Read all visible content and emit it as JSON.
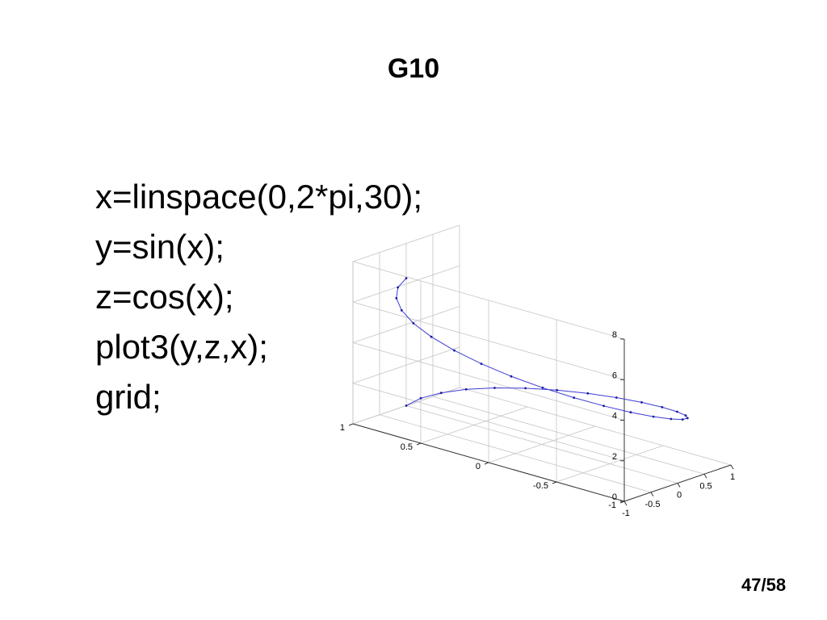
{
  "slide": {
    "title": "G10",
    "page_number": "47/58"
  },
  "code": {
    "lines": [
      "x=linspace(0,2*pi,30);",
      "y=sin(x);",
      "z=cos(x);",
      "plot3(y,z,x);",
      "grid;"
    ]
  },
  "chart_data": {
    "type": "line3d",
    "x": "sin(t)",
    "y": "cos(t)",
    "z": "t",
    "t_range": [
      0,
      6.283185307179586
    ],
    "n_points": 30,
    "xlim": [
      -1,
      1
    ],
    "ylim": [
      -1,
      1
    ],
    "zlim": [
      0,
      8
    ],
    "x_ticks": [
      "-1",
      "-0.5",
      "0",
      "0.5",
      "1"
    ],
    "y_ticks": [
      "-1",
      "-0.5",
      "0",
      "0.5",
      "1"
    ],
    "z_ticks": [
      "0",
      "2",
      "4",
      "6",
      "8"
    ],
    "grid": true,
    "line_color": "#3b3bd6",
    "marker_color": "#1a1aa0"
  }
}
